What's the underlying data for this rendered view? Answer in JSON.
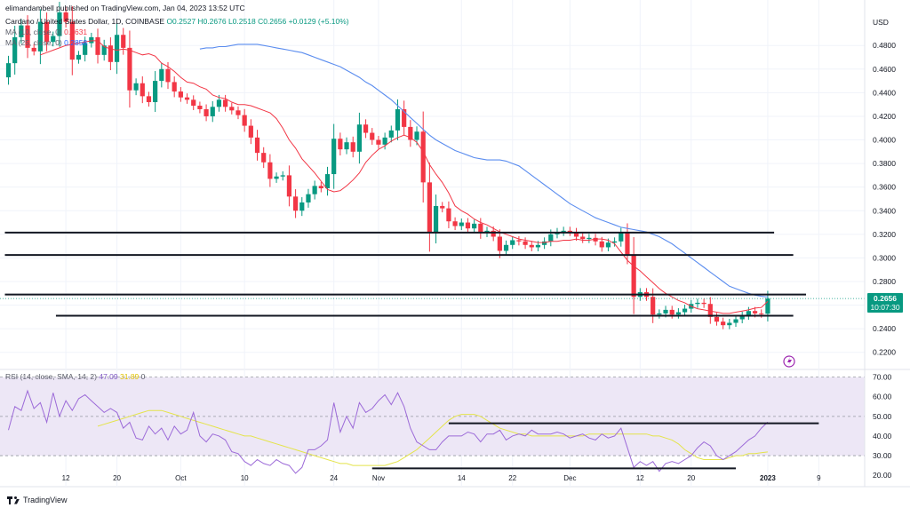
{
  "header": {
    "published": "elimandambell published on TradingView.com, Jan 04, 2023 13:52 UTC",
    "symbol": "Cardano / United States Dollar, 1D, COINBASE",
    "ohlc": {
      "o": "O0.2527",
      "h": "H0.2676",
      "l": "L0.2518",
      "c": "C0.2656",
      "chg": "+0.0129 (+5.10%)"
    },
    "ma10": {
      "label": "MA (10, close, 0)",
      "value": "0.2631"
    },
    "ma25": {
      "label": "MA (25, close, 0)",
      "value": "0.2858"
    }
  },
  "currency": "USD",
  "last_price": {
    "value": "0.2656",
    "countdown": "10:07:30"
  },
  "rsi_header": {
    "label": "RSI (14, close, SMA, 14, 2)",
    "value": "47.09",
    "sma": "31.89",
    "extra": "0"
  },
  "footer": {
    "brand": "TradingView"
  },
  "colors": {
    "up": "#089981",
    "down": "#f23645",
    "ma10": "#f23645",
    "ma25": "#5b8def",
    "rsi": "#9c6ad8",
    "rsi_sma": "#e4e44a",
    "band": "#ede7f6"
  },
  "chart_data": [
    {
      "type": "candlestick",
      "x_labels": [
        {
          "label": "12",
          "i": 9
        },
        {
          "label": "20",
          "i": 17
        },
        {
          "label": "Oct",
          "i": 27
        },
        {
          "label": "10",
          "i": 37
        },
        {
          "label": "24",
          "i": 51
        },
        {
          "label": "Nov",
          "i": 58
        },
        {
          "label": "14",
          "i": 71
        },
        {
          "label": "22",
          "i": 79
        },
        {
          "label": "Dec",
          "i": 88
        },
        {
          "label": "12",
          "i": 99
        },
        {
          "label": "20",
          "i": 107
        },
        {
          "label": "2023",
          "i": 119
        },
        {
          "label": "9",
          "i": 127
        }
      ],
      "y_ticks": [
        0.22,
        0.24,
        0.26,
        0.28,
        0.3,
        0.32,
        0.34,
        0.36,
        0.38,
        0.4,
        0.42,
        0.44,
        0.46,
        0.48
      ],
      "ylim": [
        0.207,
        0.508
      ],
      "closes": [
        0.465,
        0.487,
        0.497,
        0.478,
        0.475,
        0.5,
        0.483,
        0.488,
        0.508,
        0.5,
        0.468,
        0.472,
        0.482,
        0.487,
        0.472,
        0.48,
        0.466,
        0.489,
        0.478,
        0.442,
        0.448,
        0.437,
        0.432,
        0.45,
        0.46,
        0.449,
        0.441,
        0.436,
        0.434,
        0.429,
        0.426,
        0.42,
        0.428,
        0.434,
        0.428,
        0.425,
        0.421,
        0.412,
        0.402,
        0.389,
        0.381,
        0.367,
        0.369,
        0.37,
        0.352,
        0.34,
        0.347,
        0.354,
        0.361,
        0.359,
        0.371,
        0.401,
        0.392,
        0.398,
        0.39,
        0.413,
        0.406,
        0.4,
        0.396,
        0.402,
        0.408,
        0.426,
        0.411,
        0.4,
        0.407,
        0.364,
        0.322,
        0.344,
        0.342,
        0.331,
        0.327,
        0.33,
        0.325,
        0.329,
        0.321,
        0.323,
        0.318,
        0.306,
        0.311,
        0.315,
        0.314,
        0.311,
        0.309,
        0.311,
        0.314,
        0.32,
        0.322,
        0.323,
        0.322,
        0.318,
        0.316,
        0.317,
        0.314,
        0.309,
        0.313,
        0.314,
        0.321,
        0.303,
        0.267,
        0.271,
        0.267,
        0.252,
        0.253,
        0.256,
        0.252,
        0.254,
        0.257,
        0.261,
        0.262,
        0.261,
        0.25,
        0.246,
        0.243,
        0.245,
        0.248,
        0.251,
        0.255,
        0.253,
        0.2527,
        0.2656
      ],
      "ma10": [
        0.472,
        0.474,
        0.476,
        0.478,
        0.48,
        0.481,
        0.482,
        0.483,
        0.484,
        0.484,
        0.479,
        0.477,
        0.476,
        0.477,
        0.476,
        0.474,
        0.472,
        0.473,
        0.471,
        0.465,
        0.462,
        0.458,
        0.453,
        0.449,
        0.448,
        0.445,
        0.443,
        0.438,
        0.436,
        0.435,
        0.432,
        0.43,
        0.43,
        0.429,
        0.427,
        0.425,
        0.423,
        0.418,
        0.41,
        0.4,
        0.393,
        0.384,
        0.378,
        0.372,
        0.365,
        0.358,
        0.356,
        0.357,
        0.361,
        0.366,
        0.372,
        0.381,
        0.387,
        0.392,
        0.395,
        0.399,
        0.402,
        0.404,
        0.402,
        0.398,
        0.39,
        0.379,
        0.371,
        0.364,
        0.355,
        0.344,
        0.34,
        0.337,
        0.333,
        0.33,
        0.328,
        0.325,
        0.322,
        0.32,
        0.318,
        0.316,
        0.315,
        0.314,
        0.313,
        0.313,
        0.314,
        0.314,
        0.315,
        0.315,
        0.316,
        0.315,
        0.315,
        0.316,
        0.316,
        0.315,
        0.312,
        0.305,
        0.298,
        0.293,
        0.289,
        0.284,
        0.279,
        0.274,
        0.27,
        0.267,
        0.264,
        0.262,
        0.259,
        0.257,
        0.256,
        0.255,
        0.254,
        0.253,
        0.253,
        0.254,
        0.255,
        0.256,
        0.2575,
        0.258,
        0.2631
      ],
      "ma25": [
        0.477,
        0.478,
        0.478,
        0.479,
        0.479,
        0.48,
        0.481,
        0.481,
        0.481,
        0.481,
        0.48,
        0.479,
        0.478,
        0.477,
        0.476,
        0.475,
        0.474,
        0.472,
        0.47,
        0.468,
        0.466,
        0.464,
        0.462,
        0.459,
        0.456,
        0.453,
        0.449,
        0.446,
        0.442,
        0.438,
        0.434,
        0.429,
        0.424,
        0.419,
        0.414,
        0.409,
        0.404,
        0.4,
        0.397,
        0.394,
        0.391,
        0.389,
        0.387,
        0.385,
        0.384,
        0.383,
        0.383,
        0.383,
        0.382,
        0.38,
        0.378,
        0.374,
        0.37,
        0.366,
        0.362,
        0.358,
        0.354,
        0.35,
        0.346,
        0.343,
        0.34,
        0.337,
        0.334,
        0.332,
        0.33,
        0.328,
        0.326,
        0.325,
        0.324,
        0.323,
        0.322,
        0.32,
        0.318,
        0.315,
        0.312,
        0.308,
        0.304,
        0.3,
        0.296,
        0.292,
        0.288,
        0.284,
        0.28,
        0.276,
        0.274,
        0.272,
        0.27,
        0.2685,
        0.2675,
        0.2668
      ],
      "ma25_start": 0,
      "horizontal_lines": [
        {
          "y": 0.3215,
          "x_from": 0,
          "x_to": 120
        },
        {
          "y": 0.3025,
          "x_from": 0,
          "x_to": 123
        },
        {
          "y": 0.269,
          "x_from": 0,
          "x_to": 125
        },
        {
          "y": 0.251,
          "x_from": 8,
          "x_to": 123
        }
      ]
    },
    {
      "type": "line",
      "title": "RSI (14, close, SMA, 14, 2)",
      "y_ticks": [
        20,
        30,
        40,
        50,
        60,
        70
      ],
      "ylim": [
        16,
        73
      ],
      "band": [
        30,
        70
      ],
      "rsi": [
        43,
        55,
        53,
        63,
        54,
        57,
        47,
        62,
        50,
        58,
        53,
        59,
        61,
        58,
        55,
        52,
        54,
        52,
        44,
        47,
        39,
        38,
        45,
        41,
        44,
        38,
        45,
        41,
        43,
        52,
        40,
        37,
        41,
        40,
        38,
        32,
        31,
        27,
        25,
        28,
        26,
        25,
        28,
        26,
        25,
        21,
        24,
        33,
        33,
        35,
        38,
        57,
        42,
        50,
        44,
        57,
        52,
        54,
        58,
        61,
        56,
        62,
        55,
        44,
        37,
        35,
        33,
        33,
        37,
        40,
        40,
        40,
        42,
        41,
        37,
        41,
        41,
        43,
        38,
        40,
        41,
        40,
        43,
        41,
        41,
        41,
        42,
        41,
        39,
        40,
        41,
        39,
        38,
        41,
        39,
        40,
        44,
        34,
        24,
        27,
        25,
        27,
        22,
        26,
        27,
        26,
        28,
        30,
        34,
        37,
        35,
        30,
        28,
        30,
        32,
        35,
        38,
        40,
        44,
        47.09
      ],
      "rsi_sma": [
        45,
        46,
        47,
        48,
        49,
        50,
        51,
        52,
        53,
        53,
        53,
        52,
        51,
        50,
        49,
        48,
        47,
        46,
        45,
        44,
        43,
        42,
        41,
        40,
        40,
        39,
        38,
        37,
        36,
        35,
        34,
        33,
        32,
        31,
        30,
        29,
        28,
        27,
        26,
        26,
        25,
        25,
        25,
        25,
        25,
        25,
        26,
        27,
        29,
        31,
        33,
        36,
        39,
        42,
        45,
        48,
        50,
        51,
        51,
        51,
        50,
        48,
        46,
        44,
        43,
        42,
        41,
        41,
        40,
        40,
        40,
        40,
        40,
        40,
        40,
        40,
        40,
        41,
        41,
        41,
        41,
        41,
        41,
        41,
        41,
        41,
        41,
        40,
        40,
        39,
        38,
        36,
        33,
        31,
        29,
        28,
        28,
        28,
        28,
        29,
        30,
        30,
        31,
        31,
        31.5,
        31.89
      ],
      "horizontal_lines": [
        {
          "y": 46.5,
          "x_from": 69,
          "x_to": 127
        },
        {
          "y": 23.5,
          "x_from": 57,
          "x_to": 114
        }
      ]
    }
  ]
}
